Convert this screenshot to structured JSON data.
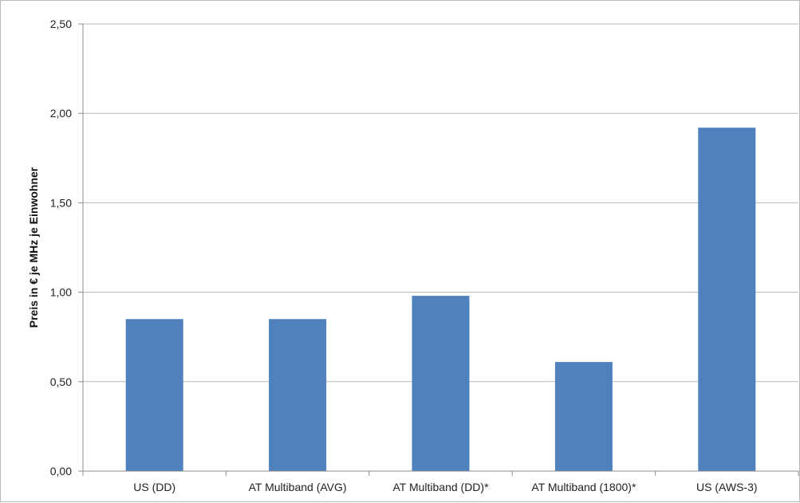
{
  "chart_data": {
    "type": "bar",
    "title": "",
    "xlabel": "",
    "ylabel": "Preis in € je MHz je Einwohner",
    "categories": [
      "US (DD)",
      "AT Multiband (AVG)",
      "AT Multiband (DD)*",
      "AT Multiband (1800)*",
      "US (AWS-3)"
    ],
    "values": [
      0.85,
      0.85,
      0.98,
      0.61,
      1.92
    ],
    "ylim": [
      0,
      2.5
    ],
    "y_ticks": [
      0,
      0.5,
      1,
      1.5,
      2,
      2.5
    ],
    "y_tick_labels": [
      "0,00",
      "0,50",
      "1,00",
      "1,50",
      "2,00",
      "2,50"
    ],
    "grid": true,
    "legend": "none",
    "colors": {
      "bar": "#4f81bd",
      "grid": "#b7b7b7",
      "axis": "#8c8c8c",
      "text": "#222222"
    }
  }
}
